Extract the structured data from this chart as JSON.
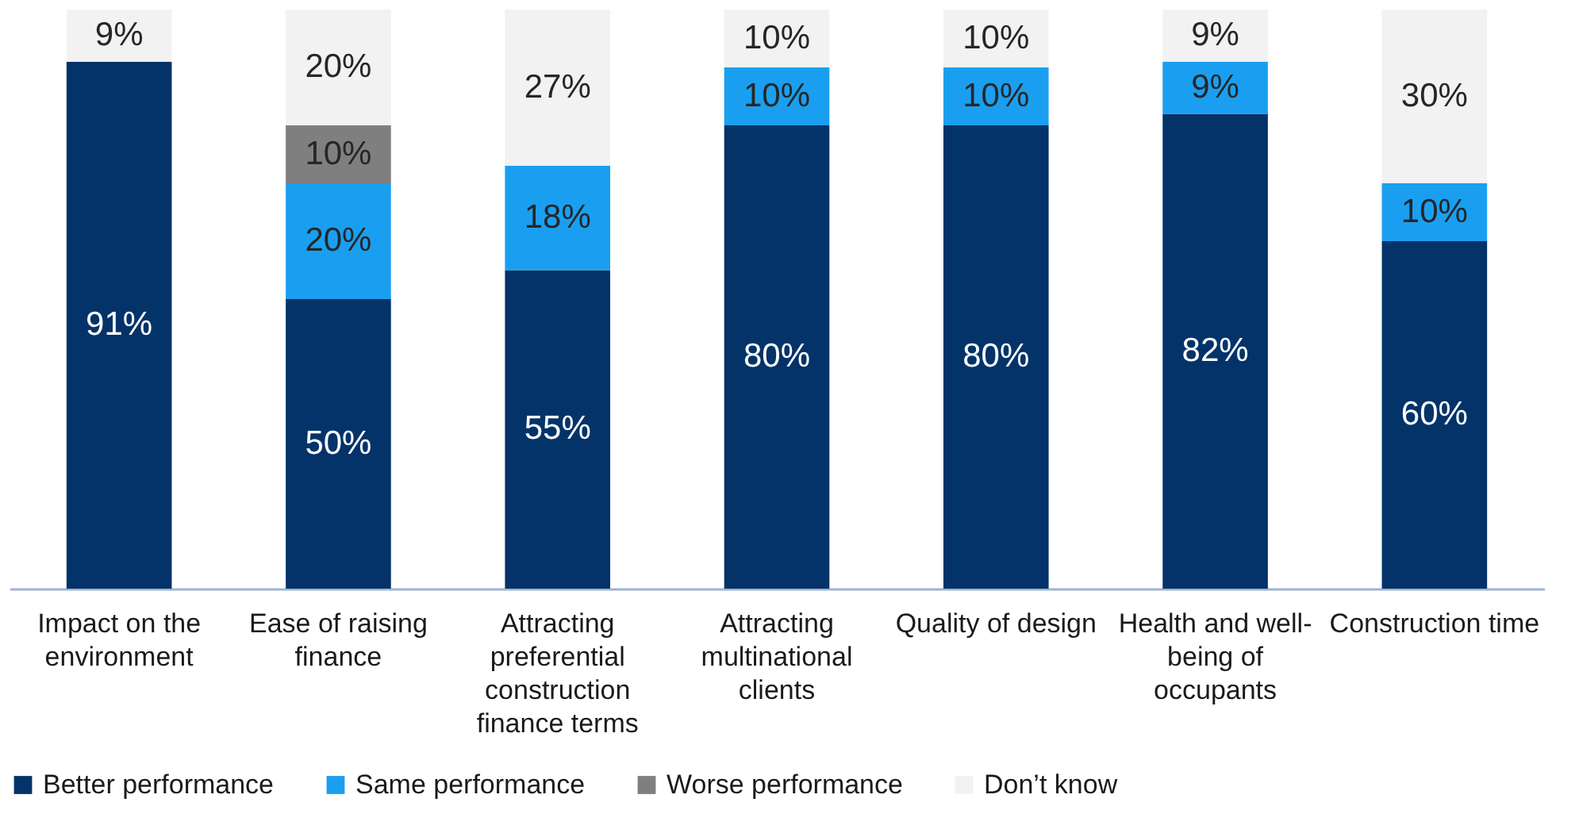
{
  "chart_data": {
    "type": "bar",
    "stacked": true,
    "ylim": [
      0,
      100
    ],
    "legend": "bottom",
    "categories": [
      "Impact on the environment",
      "Ease of raising finance",
      "Attracting preferential construction finance terms",
      "Attracting multinational clients",
      "Quality of design",
      "Health and well-being of occupants",
      "Construction time"
    ],
    "series": [
      {
        "name": "Better performance",
        "color": "#043369",
        "values": [
          91,
          50,
          55,
          80,
          80,
          82,
          60
        ],
        "value_labels": [
          "91%",
          "50%",
          "55%",
          "80%",
          "80%",
          "82%",
          "60%"
        ]
      },
      {
        "name": "Same performance",
        "color": "#1a9ff0",
        "values": [
          null,
          20,
          18,
          10,
          10,
          9,
          10
        ],
        "value_labels": [
          null,
          "20%",
          "18%",
          "10%",
          "10%",
          "9%",
          "10%"
        ]
      },
      {
        "name": "Worse performance",
        "color": "#7f7f7f",
        "values": [
          null,
          10,
          null,
          null,
          null,
          null,
          null
        ],
        "value_labels": [
          null,
          "10%",
          null,
          null,
          null,
          null,
          null
        ]
      },
      {
        "name": "Don’t know",
        "color": "#f2f2f2",
        "values": [
          9,
          20,
          27,
          10,
          10,
          9,
          30
        ],
        "value_labels": [
          "9%",
          "20%",
          "27%",
          "10%",
          "10%",
          "9%",
          "30%"
        ]
      }
    ]
  }
}
